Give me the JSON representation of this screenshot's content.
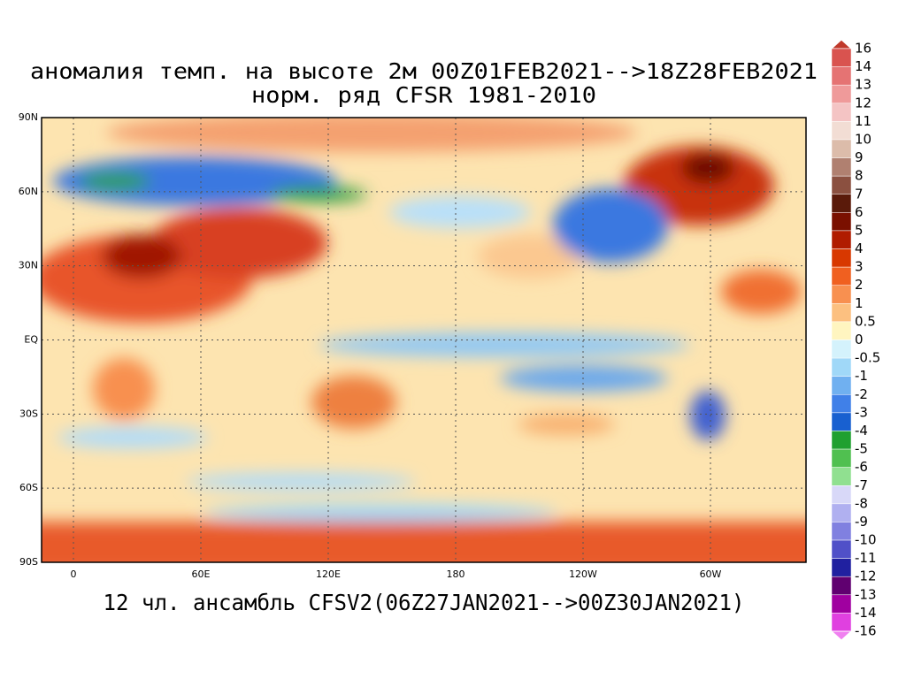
{
  "map": {
    "title": "аномалия темп. на высоте 2м 00Z01FEB2021-->18Z28FEB2021",
    "subtitle": "норм. ряд CFSR 1981-2010",
    "caption": "12 чл. ансамбль CFSV2(06Z27JAN2021-->00Z30JAN2021)",
    "xlim": [
      -15,
      345
    ],
    "ylim": [
      -90,
      90
    ],
    "xticks": [
      0,
      {
        "value": 60,
        "label": "60E"
      },
      {
        "value": 120,
        "label": "120E"
      },
      180,
      {
        "value": 240,
        "label": "120W"
      },
      {
        "value": 300,
        "label": "60W"
      }
    ],
    "yticks": [
      {
        "value": 90,
        "label": "90N"
      },
      {
        "value": 60,
        "label": "60N"
      },
      {
        "value": 30,
        "label": "30N"
      },
      {
        "value": 0,
        "label": "EQ"
      },
      {
        "value": -30,
        "label": "30S"
      },
      {
        "value": -60,
        "label": "60S"
      },
      {
        "value": -90,
        "label": "90S"
      }
    ],
    "grid": true,
    "colorbar": {
      "levels": [
        16,
        14,
        13,
        12,
        11,
        10,
        9,
        8,
        7,
        6,
        5,
        4,
        3,
        2,
        1,
        0.5,
        0,
        -0.5,
        -1,
        -2,
        -3,
        -4,
        -5,
        -6,
        -7,
        -8,
        -9,
        -10,
        -11,
        -12,
        -13,
        -14,
        -16
      ],
      "colors": [
        "#c0392b",
        "#d9534f",
        "#e57373",
        "#ef9a9a",
        "#f4c4c4",
        "#f2ddd4",
        "#dcbcaa",
        "#b08070",
        "#8b5040",
        "#5a1a0a",
        "#7a1000",
        "#b01c00",
        "#d83800",
        "#f06020",
        "#f89050",
        "#fcc080",
        "#fff5c0",
        "#d4f2fc",
        "#a0d8f8",
        "#70b0f0",
        "#4080e8",
        "#1860d0",
        "#20a030",
        "#50c050",
        "#90e090",
        "#d8d8f8",
        "#b0b0f0",
        "#8080e0",
        "#5050c8",
        "#2020a0",
        "#600070",
        "#a000a0",
        "#e040e0",
        "#f080f0"
      ]
    }
  }
}
